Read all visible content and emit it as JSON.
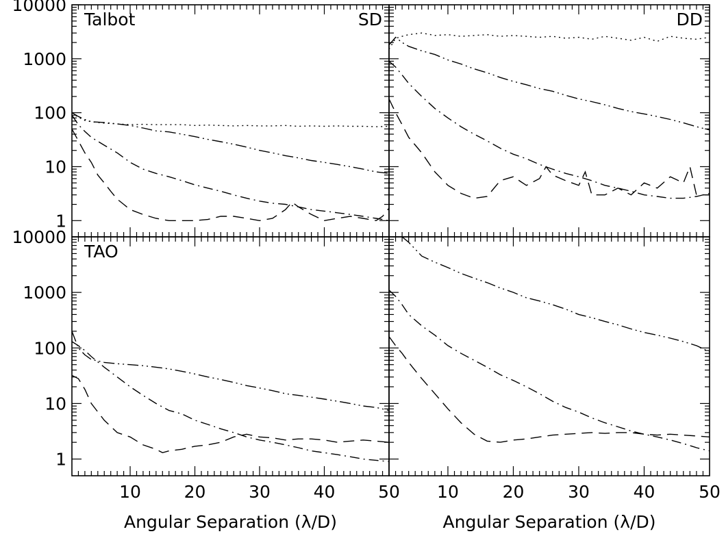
{
  "chart_data": [
    {
      "type": "line",
      "panel": "top-left",
      "labels": [
        "Talbot",
        "SD"
      ],
      "xlim": [
        1,
        50
      ],
      "ylim": [
        0.5,
        10000
      ],
      "yscale": "log",
      "xticks": [],
      "yticks": [
        "1",
        "10",
        "100",
        "1000",
        "10000"
      ],
      "xlabel": "",
      "series": [
        {
          "style": "dashed",
          "x": [
            1,
            2,
            3,
            4,
            5,
            6,
            7,
            8,
            9,
            10,
            12,
            14,
            16,
            18,
            20,
            22,
            24,
            26,
            28,
            30,
            32,
            34,
            35,
            36,
            38,
            40,
            42,
            44,
            46,
            48,
            49,
            50
          ],
          "y": [
            50,
            30,
            18,
            12,
            7,
            5,
            3.5,
            2.5,
            2,
            1.6,
            1.3,
            1.1,
            1.0,
            1.0,
            1.0,
            1.05,
            1.2,
            1.2,
            1.1,
            1.0,
            1.1,
            1.6,
            2.2,
            1.8,
            1.3,
            1.0,
            1.1,
            1.2,
            1.1,
            1.0,
            1.2,
            1.7
          ]
        },
        {
          "style": "dash-dot",
          "x": [
            1,
            2,
            3,
            4,
            6,
            8,
            10,
            12,
            14,
            16,
            18,
            20,
            22,
            24,
            26,
            28,
            30,
            32,
            34,
            36,
            38,
            40,
            42,
            44,
            46,
            48,
            50
          ],
          "y": [
            90,
            60,
            45,
            35,
            25,
            18,
            12,
            9,
            7.5,
            6.5,
            5.5,
            4.6,
            4.0,
            3.5,
            3.0,
            2.6,
            2.3,
            2.1,
            2.0,
            1.8,
            1.6,
            1.5,
            1.4,
            1.3,
            1.2,
            1.1,
            1.0
          ]
        },
        {
          "style": "dash-dot-dot",
          "x": [
            1,
            2,
            3,
            4,
            6,
            8,
            10,
            12,
            14,
            16,
            18,
            20,
            22,
            24,
            26,
            28,
            30,
            32,
            34,
            36,
            38,
            40,
            42,
            44,
            46,
            48,
            50
          ],
          "y": [
            100,
            85,
            75,
            68,
            66,
            62,
            58,
            52,
            46,
            44,
            40,
            36,
            32,
            29,
            26,
            23,
            20,
            18,
            16,
            14.5,
            13,
            12,
            11,
            10,
            9,
            8,
            7.5
          ]
        },
        {
          "style": "dotted",
          "x": [
            1,
            2,
            3,
            4,
            6,
            8,
            10,
            12,
            14,
            16,
            18,
            20,
            22,
            24,
            26,
            28,
            30,
            32,
            34,
            36,
            38,
            40,
            42,
            44,
            46,
            48,
            50
          ],
          "y": [
            100,
            82,
            72,
            68,
            64,
            62,
            60,
            61,
            60,
            60,
            60,
            58,
            59,
            58,
            57,
            58,
            57,
            57,
            58,
            56,
            57,
            56,
            57,
            56,
            56,
            55,
            56
          ]
        }
      ]
    },
    {
      "type": "line",
      "panel": "top-right",
      "labels": [
        "DD"
      ],
      "xlim": [
        1,
        50
      ],
      "ylim": [
        0.5,
        10000
      ],
      "yscale": "log",
      "xticks": [],
      "yticks": [],
      "xlabel": "",
      "series": [
        {
          "style": "dashed",
          "x": [
            1,
            2,
            3,
            4,
            6,
            8,
            10,
            12,
            14,
            16,
            18,
            20,
            22,
            24,
            25,
            26,
            28,
            30,
            31,
            32,
            34,
            36,
            38,
            40,
            42,
            44,
            46,
            47,
            48,
            50
          ],
          "y": [
            180,
            100,
            60,
            35,
            18,
            8,
            4.5,
            3.2,
            2.6,
            2.8,
            5.5,
            6.5,
            4.5,
            6,
            10,
            7,
            5.5,
            4.5,
            8,
            3,
            3,
            4,
            3,
            5,
            4,
            6.5,
            5,
            10,
            3,
            3
          ]
        },
        {
          "style": "dash-dot",
          "x": [
            1,
            2,
            3,
            4,
            6,
            8,
            10,
            12,
            14,
            16,
            18,
            20,
            22,
            24,
            26,
            28,
            30,
            32,
            34,
            36,
            38,
            40,
            42,
            44,
            46,
            48,
            50
          ],
          "y": [
            900,
            700,
            500,
            350,
            200,
            120,
            80,
            55,
            40,
            30,
            22,
            17,
            14,
            11,
            9,
            7.5,
            6.5,
            5.5,
            4.5,
            4,
            3.5,
            3,
            2.8,
            2.6,
            2.6,
            2.8,
            3.2
          ]
        },
        {
          "style": "dash-dot-dot",
          "x": [
            1,
            2,
            3,
            4,
            6,
            8,
            10,
            12,
            14,
            16,
            18,
            20,
            22,
            24,
            26,
            28,
            30,
            32,
            34,
            36,
            38,
            40,
            42,
            44,
            46,
            48,
            50
          ],
          "y": [
            1800,
            2500,
            2000,
            1700,
            1400,
            1200,
            950,
            800,
            650,
            550,
            450,
            380,
            330,
            280,
            250,
            210,
            180,
            160,
            140,
            120,
            105,
            95,
            85,
            75,
            65,
            55,
            48
          ]
        },
        {
          "style": "dotted",
          "x": [
            1,
            2,
            3,
            4,
            6,
            8,
            10,
            12,
            14,
            16,
            18,
            20,
            22,
            24,
            26,
            28,
            30,
            32,
            34,
            36,
            38,
            40,
            42,
            44,
            46,
            48,
            50
          ],
          "y": [
            1500,
            2400,
            2600,
            2800,
            3000,
            2700,
            2800,
            2600,
            2700,
            2800,
            2600,
            2700,
            2600,
            2500,
            2600,
            2400,
            2500,
            2300,
            2600,
            2400,
            2200,
            2500,
            2100,
            2600,
            2400,
            2300,
            2500
          ]
        }
      ]
    },
    {
      "type": "line",
      "panel": "bottom-left",
      "labels": [
        "TAO"
      ],
      "xlim": [
        1,
        50
      ],
      "ylim": [
        0.5,
        10000
      ],
      "yscale": "log",
      "xticks": [
        "10",
        "20",
        "30",
        "40",
        "50"
      ],
      "yticks": [
        "1",
        "10",
        "100",
        "1000",
        "10000"
      ],
      "xlabel": "Angular Separation (λ/D)",
      "series": [
        {
          "style": "dashed",
          "x": [
            1,
            2,
            3,
            4,
            6,
            8,
            10,
            12,
            14,
            15,
            16,
            18,
            20,
            22,
            24,
            26,
            28,
            30,
            32,
            34,
            36,
            38,
            40,
            42,
            44,
            46,
            48,
            50
          ],
          "y": [
            32,
            28,
            18,
            10,
            5,
            3,
            2.5,
            1.8,
            1.5,
            1.3,
            1.4,
            1.5,
            1.7,
            1.8,
            2.0,
            2.5,
            2.8,
            2.5,
            2.4,
            2.2,
            2.3,
            2.3,
            2.2,
            2.0,
            2.1,
            2.2,
            2.1,
            2.0
          ]
        },
        {
          "style": "dash-dot",
          "x": [
            1,
            2,
            3,
            4,
            6,
            8,
            10,
            12,
            14,
            16,
            18,
            20,
            22,
            24,
            26,
            28,
            30,
            32,
            34,
            36,
            38,
            40,
            42,
            44,
            46,
            48,
            50
          ],
          "y": [
            130,
            110,
            90,
            70,
            45,
            30,
            20,
            14,
            10,
            7.5,
            6.5,
            5,
            4.2,
            3.5,
            3,
            2.5,
            2.2,
            2.0,
            1.8,
            1.6,
            1.4,
            1.3,
            1.2,
            1.1,
            1.0,
            0.95,
            0.9
          ]
        },
        {
          "style": "dash-dot-dot",
          "x": [
            1,
            2,
            3,
            4,
            6,
            8,
            10,
            12,
            14,
            16,
            18,
            20,
            22,
            24,
            26,
            28,
            30,
            32,
            34,
            36,
            38,
            40,
            42,
            44,
            46,
            48,
            50
          ],
          "y": [
            200,
            100,
            75,
            62,
            55,
            52,
            50,
            48,
            45,
            42,
            38,
            34,
            30,
            27,
            24,
            21,
            19,
            17,
            15,
            14,
            13,
            12,
            11,
            10,
            9,
            8.5,
            7.5
          ]
        }
      ]
    },
    {
      "type": "line",
      "panel": "bottom-right",
      "labels": [],
      "xlim": [
        1,
        50
      ],
      "ylim": [
        0.5,
        10000
      ],
      "yscale": "log",
      "xticks": [
        "10",
        "20",
        "30",
        "40",
        "50"
      ],
      "yticks": [],
      "xlabel": "Angular Separation (λ/D)",
      "series": [
        {
          "style": "dashed",
          "x": [
            1,
            2,
            3,
            4,
            6,
            8,
            10,
            12,
            14,
            16,
            18,
            20,
            22,
            24,
            26,
            28,
            30,
            32,
            34,
            36,
            38,
            40,
            42,
            44,
            46,
            48,
            50
          ],
          "y": [
            160,
            110,
            80,
            55,
            28,
            15,
            8,
            4.5,
            2.8,
            2.1,
            2.0,
            2.2,
            2.3,
            2.5,
            2.7,
            2.8,
            2.9,
            3.0,
            2.9,
            3.0,
            3.0,
            2.8,
            2.7,
            2.8,
            2.7,
            2.6,
            2.5
          ]
        },
        {
          "style": "dash-dot",
          "x": [
            1,
            2,
            3,
            4,
            6,
            8,
            10,
            12,
            14,
            16,
            18,
            20,
            22,
            24,
            26,
            28,
            30,
            32,
            34,
            36,
            38,
            40,
            42,
            44,
            46,
            48,
            50
          ],
          "y": [
            1100,
            850,
            600,
            400,
            250,
            170,
            110,
            80,
            60,
            45,
            33,
            26,
            20,
            15,
            11,
            8.5,
            7,
            5.5,
            4.5,
            3.8,
            3.2,
            2.8,
            2.5,
            2.2,
            1.9,
            1.6,
            1.4
          ]
        },
        {
          "style": "dash-dot-dot",
          "x": [
            3,
            4,
            6,
            8,
            10,
            12,
            14,
            16,
            18,
            20,
            22,
            24,
            26,
            28,
            30,
            32,
            34,
            36,
            38,
            40,
            42,
            44,
            46,
            48,
            50
          ],
          "y": [
            10000,
            8000,
            4500,
            3500,
            2800,
            2200,
            1800,
            1500,
            1200,
            1000,
            800,
            700,
            600,
            500,
            400,
            350,
            300,
            260,
            220,
            190,
            170,
            150,
            130,
            110,
            85
          ]
        }
      ]
    }
  ]
}
